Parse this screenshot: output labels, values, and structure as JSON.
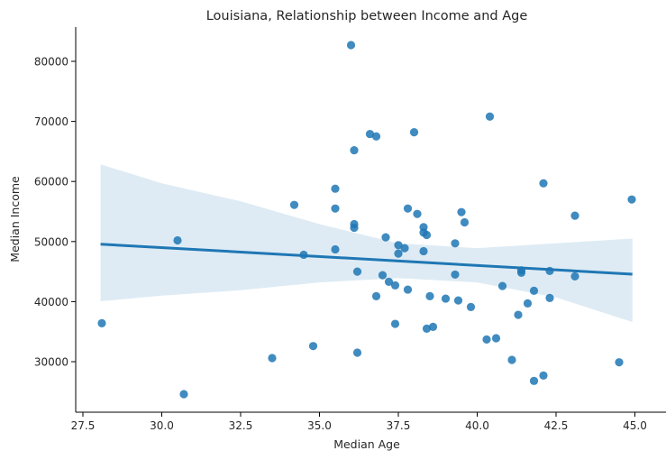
{
  "chart_data": {
    "type": "scatter",
    "title": "Louisiana, Relationship between Income and Age",
    "xlabel": "Median Age",
    "ylabel": "Median Income",
    "xlim": [
      27.2,
      45.5
    ],
    "ylim": [
      21500,
      85500
    ],
    "x_ticks": [
      27.5,
      30.0,
      32.5,
      35.0,
      37.5,
      40.0,
      42.5,
      45.0
    ],
    "x_tick_labels": [
      "27.5",
      "30.0",
      "32.5",
      "35.0",
      "37.5",
      "40.0",
      "42.5",
      "45.0"
    ],
    "y_ticks": [
      30000,
      40000,
      50000,
      60000,
      70000,
      80000
    ],
    "y_tick_labels": [
      "30000",
      "40000",
      "50000",
      "60000",
      "70000",
      "80000"
    ],
    "grid": false,
    "colors": {
      "points": "#1f77b4",
      "line": "#1f77b4",
      "band": "#1f77b4"
    },
    "points": [
      [
        28.1,
        36400
      ],
      [
        30.5,
        50200
      ],
      [
        30.7,
        24600
      ],
      [
        33.5,
        30600
      ],
      [
        34.2,
        56100
      ],
      [
        34.5,
        47800
      ],
      [
        34.8,
        32600
      ],
      [
        35.5,
        58800
      ],
      [
        35.5,
        55500
      ],
      [
        35.5,
        48700
      ],
      [
        36.0,
        82700
      ],
      [
        36.1,
        65200
      ],
      [
        36.1,
        52900
      ],
      [
        36.1,
        52300
      ],
      [
        36.2,
        45000
      ],
      [
        36.2,
        31500
      ],
      [
        36.6,
        67900
      ],
      [
        36.8,
        67500
      ],
      [
        36.8,
        40900
      ],
      [
        38.0,
        68200
      ],
      [
        40.4,
        70800
      ],
      [
        42.1,
        59700
      ],
      [
        44.9,
        57000
      ],
      [
        43.1,
        54300
      ],
      [
        37.8,
        55500
      ],
      [
        38.1,
        54600
      ],
      [
        39.5,
        54900
      ],
      [
        39.6,
        53200
      ],
      [
        38.3,
        52400
      ],
      [
        38.3,
        51500
      ],
      [
        38.4,
        51100
      ],
      [
        37.1,
        50700
      ],
      [
        39.3,
        49700
      ],
      [
        37.5,
        49400
      ],
      [
        37.7,
        48900
      ],
      [
        37.5,
        48000
      ],
      [
        38.3,
        48400
      ],
      [
        41.4,
        45200
      ],
      [
        41.4,
        44800
      ],
      [
        42.3,
        45100
      ],
      [
        43.1,
        44200
      ],
      [
        39.3,
        44500
      ],
      [
        37.0,
        44400
      ],
      [
        37.2,
        43300
      ],
      [
        37.4,
        42700
      ],
      [
        37.8,
        42000
      ],
      [
        40.8,
        42600
      ],
      [
        41.8,
        41800
      ],
      [
        38.5,
        40900
      ],
      [
        39.0,
        40500
      ],
      [
        39.4,
        40200
      ],
      [
        39.8,
        39100
      ],
      [
        42.3,
        40600
      ],
      [
        41.6,
        39700
      ],
      [
        41.3,
        37800
      ],
      [
        37.4,
        36300
      ],
      [
        38.4,
        35500
      ],
      [
        38.6,
        35800
      ],
      [
        40.3,
        33700
      ],
      [
        40.6,
        33900
      ],
      [
        41.1,
        30300
      ],
      [
        44.5,
        29900
      ],
      [
        42.1,
        27700
      ],
      [
        41.8,
        26800
      ]
    ],
    "regression": {
      "x": [
        28.06,
        44.92
      ],
      "y": [
        49565,
        44565
      ]
    },
    "confidence_band": {
      "x": [
        28.06,
        30.0,
        32.5,
        35.0,
        37.5,
        40.0,
        42.5,
        44.92
      ],
      "upper": [
        62840,
        59700,
        56700,
        52900,
        49700,
        48900,
        49700,
        50500
      ],
      "lower": [
        40060,
        41000,
        41900,
        43200,
        43900,
        43200,
        40700,
        36600
      ]
    }
  }
}
